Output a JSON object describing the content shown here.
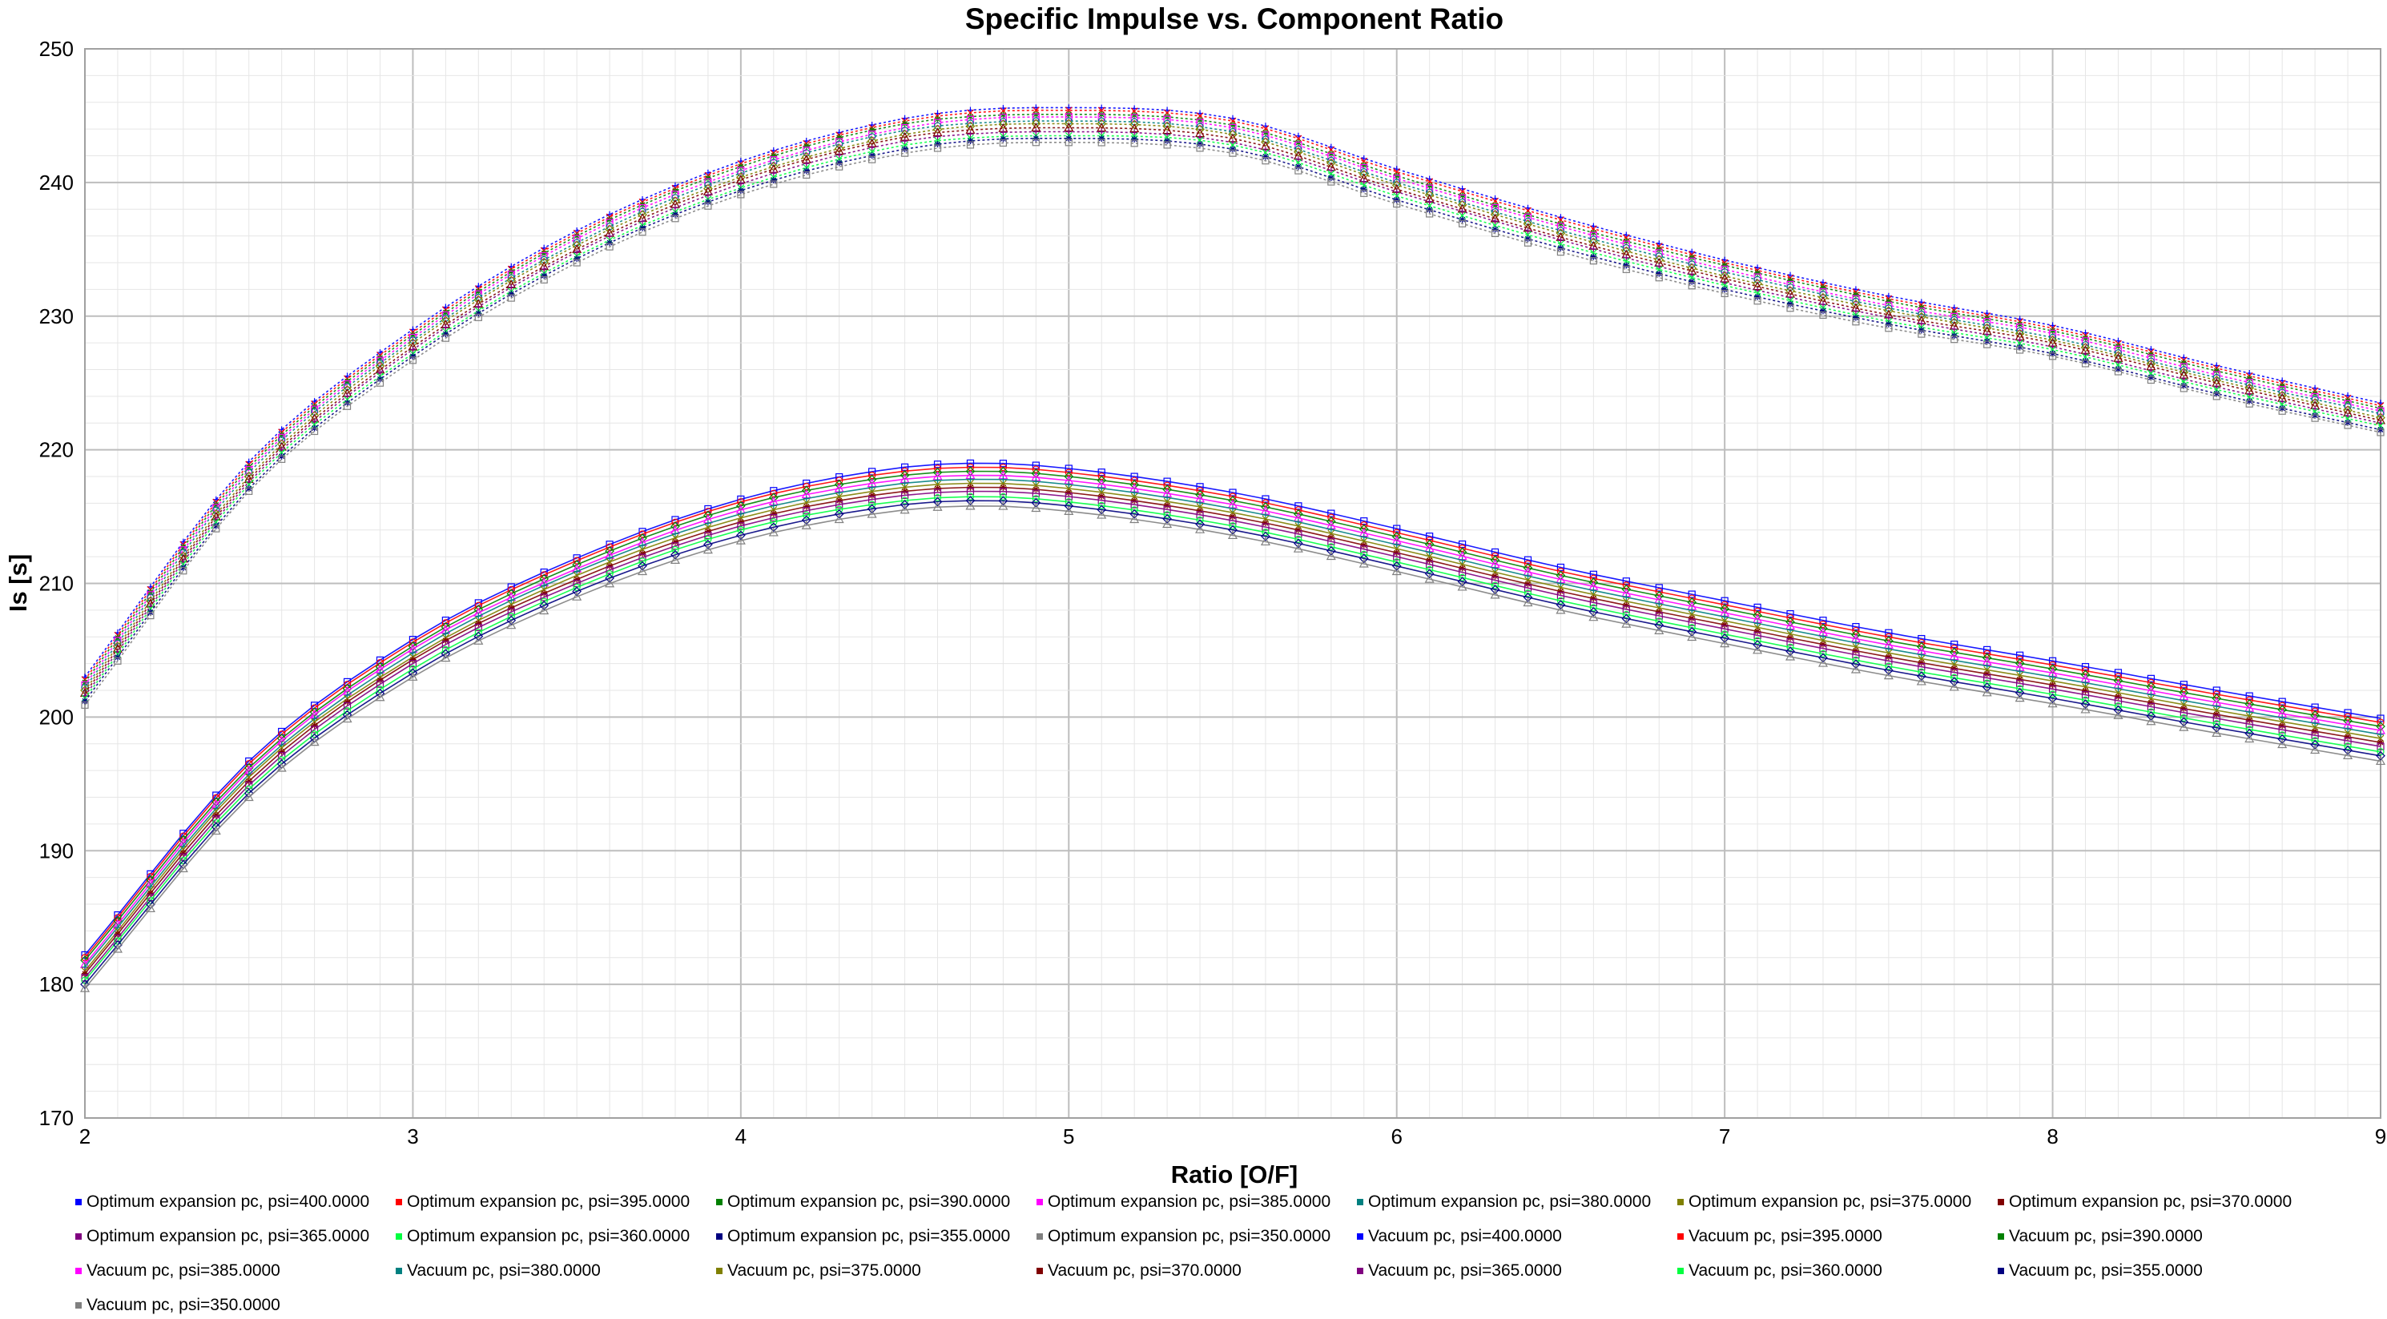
{
  "chart_data": {
    "type": "line",
    "title": "Specific Impulse vs. Component Ratio",
    "xlabel": "Ratio [O/F]",
    "ylabel": "Is [s]",
    "xlim": [
      2,
      9
    ],
    "ylim": [
      170,
      250
    ],
    "x_ticks": [
      "2",
      "3",
      "4",
      "5",
      "6",
      "7",
      "8",
      "9"
    ],
    "y_ticks": [
      "170",
      "180",
      "190",
      "200",
      "210",
      "220",
      "230",
      "240",
      "250"
    ],
    "grid": true,
    "legend_position": "bottom",
    "x": [
      2,
      2.5,
      3,
      3.5,
      4,
      4.5,
      4.75,
      5,
      5.5,
      6,
      6.5,
      7,
      7.5,
      8,
      8.5,
      9
    ],
    "series": [
      {
        "name": "Optimum expansion pc, psi=400.0000",
        "color": "#0000ff",
        "values": [
          182.2,
          196.7,
          205.8,
          211.9,
          216.3,
          218.7,
          219.0,
          218.6,
          216.8,
          214.1,
          211.2,
          208.7,
          206.3,
          204.2,
          202.0,
          199.9
        ]
      },
      {
        "name": "Optimum expansion pc, psi=395.0000",
        "color": "#ff0000",
        "values": [
          182.0,
          196.5,
          205.6,
          211.7,
          216.1,
          218.4,
          218.7,
          218.3,
          216.5,
          213.8,
          210.9,
          208.4,
          206.0,
          203.9,
          201.7,
          199.6
        ]
      },
      {
        "name": "Optimum expansion pc, psi=390.0000",
        "color": "#008000",
        "values": [
          181.8,
          196.2,
          205.3,
          211.4,
          215.8,
          218.1,
          218.4,
          218.0,
          216.2,
          213.5,
          210.6,
          208.1,
          205.7,
          203.6,
          201.4,
          199.3
        ]
      },
      {
        "name": "Optimum expansion pc, psi=385.0000",
        "color": "#ff00ff",
        "values": [
          181.5,
          196.0,
          205.1,
          211.1,
          215.5,
          217.8,
          218.1,
          217.7,
          215.9,
          213.2,
          210.3,
          207.8,
          205.4,
          203.3,
          201.1,
          199.0
        ]
      },
      {
        "name": "Optimum expansion pc, psi=380.0000",
        "color": "#008080",
        "values": [
          181.3,
          195.7,
          204.8,
          210.9,
          215.2,
          217.5,
          217.8,
          217.4,
          215.6,
          212.9,
          210.0,
          207.5,
          205.1,
          203.0,
          200.8,
          198.7
        ]
      },
      {
        "name": "Optimum expansion pc, psi=375.0000",
        "color": "#808000",
        "values": [
          181.0,
          195.5,
          204.5,
          210.6,
          214.9,
          217.2,
          217.5,
          217.1,
          215.3,
          212.6,
          209.7,
          207.2,
          204.8,
          202.7,
          200.5,
          198.4
        ]
      },
      {
        "name": "Optimum expansion pc, psi=370.0000",
        "color": "#800000",
        "values": [
          180.8,
          195.2,
          204.3,
          210.3,
          214.6,
          216.9,
          217.2,
          216.8,
          215.0,
          212.3,
          209.4,
          206.9,
          204.5,
          202.4,
          200.2,
          198.1
        ]
      },
      {
        "name": "Optimum expansion pc, psi=365.0000",
        "color": "#800080",
        "values": [
          180.5,
          194.9,
          204.0,
          210.0,
          214.3,
          216.6,
          216.9,
          216.5,
          214.7,
          212.0,
          209.1,
          206.6,
          204.2,
          202.1,
          199.9,
          197.8
        ]
      },
      {
        "name": "Optimum expansion pc, psi=360.0000",
        "color": "#00ff40",
        "values": [
          180.3,
          194.6,
          203.6,
          209.7,
          214.0,
          216.2,
          216.5,
          216.1,
          214.3,
          211.6,
          208.7,
          206.2,
          203.8,
          201.7,
          199.5,
          197.4
        ]
      },
      {
        "name": "Optimum expansion pc, psi=355.0000",
        "color": "#000080",
        "values": [
          180.0,
          194.3,
          203.3,
          209.4,
          213.6,
          215.9,
          216.2,
          215.8,
          214.0,
          211.3,
          208.4,
          205.9,
          203.5,
          201.4,
          199.2,
          197.1
        ]
      },
      {
        "name": "Optimum expansion pc, psi=350.0000",
        "color": "#808080",
        "values": [
          179.7,
          194.0,
          203.0,
          209.0,
          213.2,
          215.5,
          215.8,
          215.4,
          213.6,
          210.9,
          208.0,
          205.5,
          203.1,
          201.0,
          198.8,
          196.7
        ]
      },
      {
        "name": "Vacuum pc, psi=400.0000",
        "color": "#0000ff",
        "values": [
          203.0,
          219.1,
          229.0,
          236.4,
          241.6,
          244.8,
          245.5,
          245.6,
          244.8,
          241.0,
          237.4,
          234.2,
          231.5,
          229.3,
          226.3,
          223.5
        ]
      },
      {
        "name": "Vacuum pc, psi=395.0000",
        "color": "#ff0000",
        "values": [
          202.8,
          218.9,
          228.8,
          236.2,
          241.4,
          244.6,
          245.3,
          245.4,
          244.6,
          240.8,
          237.2,
          234.0,
          231.3,
          229.1,
          226.1,
          223.3
        ]
      },
      {
        "name": "Vacuum pc, psi=390.0000",
        "color": "#008000",
        "values": [
          202.6,
          218.7,
          228.6,
          236.0,
          241.2,
          244.4,
          245.0,
          245.1,
          244.3,
          240.5,
          236.9,
          233.8,
          231.1,
          228.9,
          225.9,
          223.1
        ]
      },
      {
        "name": "Vacuum pc, psi=385.0000",
        "color": "#ff00ff",
        "values": [
          202.4,
          218.5,
          228.4,
          235.8,
          240.9,
          244.1,
          244.8,
          244.9,
          244.1,
          240.3,
          236.7,
          233.5,
          230.8,
          228.7,
          225.6,
          222.9
        ]
      },
      {
        "name": "Vacuum pc, psi=380.0000",
        "color": "#008080",
        "values": [
          202.2,
          218.3,
          228.2,
          235.5,
          240.7,
          243.9,
          244.5,
          244.6,
          243.8,
          240.0,
          236.4,
          233.3,
          230.6,
          228.4,
          225.4,
          222.7
        ]
      },
      {
        "name": "Vacuum pc, psi=375.0000",
        "color": "#808000",
        "values": [
          202.0,
          218.0,
          228.0,
          235.3,
          240.4,
          243.6,
          244.3,
          244.4,
          243.6,
          239.8,
          236.2,
          233.0,
          230.4,
          228.2,
          225.2,
          222.4
        ]
      },
      {
        "name": "Vacuum pc, psi=370.0000",
        "color": "#800000",
        "values": [
          201.8,
          217.8,
          227.7,
          235.0,
          240.2,
          243.4,
          244.0,
          244.1,
          243.3,
          239.5,
          235.9,
          232.8,
          230.1,
          228.0,
          225.0,
          222.2
        ]
      },
      {
        "name": "Vacuum pc, psi=365.0000",
        "color": "#800080",
        "values": [
          201.6,
          217.6,
          227.5,
          234.8,
          239.9,
          243.1,
          243.7,
          243.8,
          243.0,
          239.3,
          235.7,
          232.5,
          229.9,
          227.7,
          224.7,
          222.0
        ]
      },
      {
        "name": "Vacuum pc, psi=360.0000",
        "color": "#00ff40",
        "values": [
          201.4,
          217.4,
          227.2,
          234.5,
          239.6,
          242.8,
          243.4,
          243.5,
          242.8,
          239.0,
          235.4,
          232.3,
          229.6,
          227.5,
          224.5,
          221.8
        ]
      },
      {
        "name": "Vacuum pc, psi=355.0000",
        "color": "#000080",
        "values": [
          201.2,
          217.1,
          227.0,
          234.3,
          239.4,
          242.5,
          243.2,
          243.3,
          242.5,
          238.7,
          235.1,
          232.0,
          229.4,
          227.2,
          224.2,
          221.5
        ]
      },
      {
        "name": "Vacuum pc, psi=350.0000",
        "color": "#808080",
        "values": [
          200.9,
          216.9,
          226.7,
          234.0,
          239.1,
          242.2,
          242.9,
          243.0,
          242.2,
          238.4,
          234.8,
          231.7,
          229.1,
          227.0,
          224.0,
          221.3
        ]
      }
    ]
  }
}
